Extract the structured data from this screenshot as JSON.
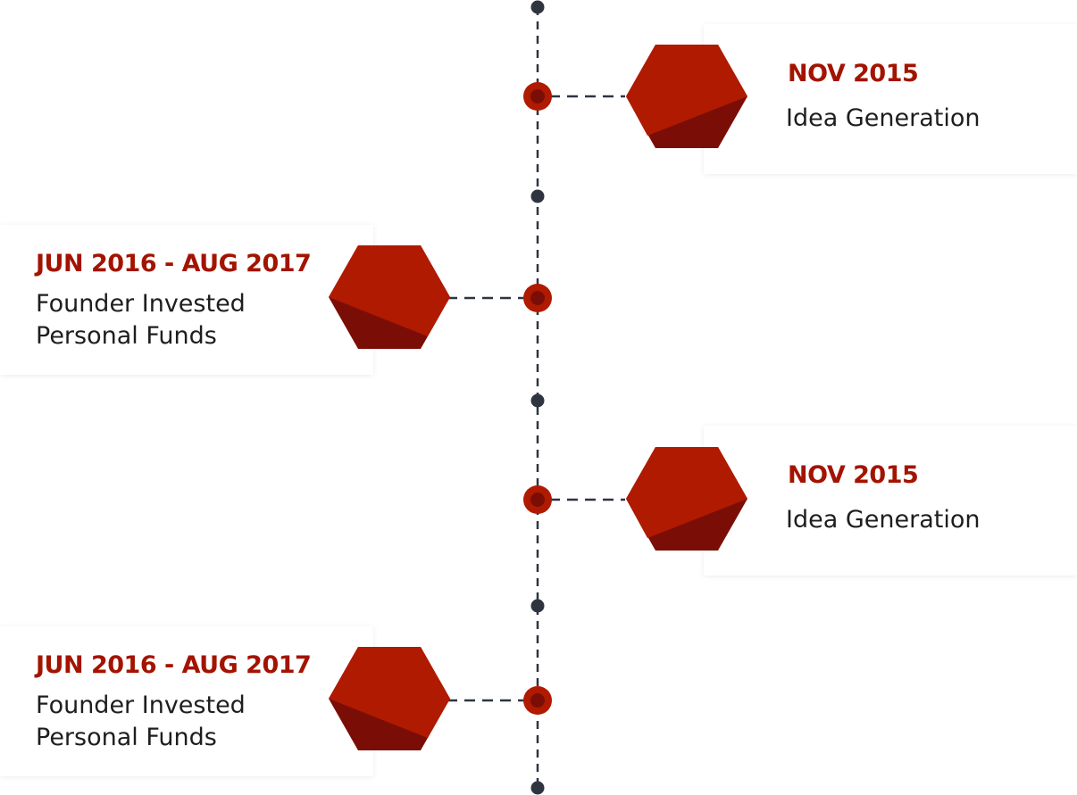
{
  "colors": {
    "accent": "#b01a00",
    "hex_light": "#b01a00",
    "hex_dark": "#7a0e06",
    "axis": "#2e3440",
    "node_fill": "#b01a00",
    "node_inner": "#7a0e06",
    "date_text": "#a31400"
  },
  "events": [
    {
      "date": "NOV 2015",
      "title": "Idea Generation",
      "side": "right"
    },
    {
      "date": "JUN 2016 - AUG 2017",
      "title": "Founder Invested\nPersonal Funds",
      "side": "left"
    },
    {
      "date": "NOV 2015",
      "title": "Idea Generation",
      "side": "right"
    },
    {
      "date": "JUN 2016 - AUG 2017",
      "title": "Founder Invested\nPersonal Funds",
      "side": "left"
    }
  ]
}
